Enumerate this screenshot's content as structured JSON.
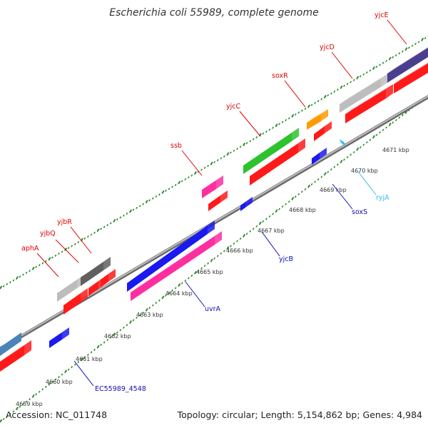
{
  "title": "Escherichia coli 55989, complete genome",
  "footer": {
    "accession": "Accession: NC_011748",
    "summary": "Topology: circular; Length: 5,154,862 bp; Genes: 4,984"
  },
  "colors": {
    "backbone": "#9a9a9a",
    "tick": "#2e8b2e",
    "label_red": "#e00000",
    "label_blue": "#1010b0",
    "label_cyan": "#33bbee"
  },
  "kbp_labels": [
    "4659 kbp",
    "4660 kbp",
    "4661 kbp",
    "4662 kbp",
    "4663 kbp",
    "4664 kbp",
    "4665 kbp",
    "4666 kbp",
    "4667 kbp",
    "4668 kbp",
    "4669 kbp",
    "4670 kbp",
    "4671 kbp"
  ],
  "genes": [
    {
      "label": "aphA",
      "color": "#e00000"
    },
    {
      "label": "yjbQ",
      "color": "#e00000"
    },
    {
      "label": "yjbR",
      "color": "#e00000"
    },
    {
      "label": "ssb",
      "color": "#e00000"
    },
    {
      "label": "yjcC",
      "color": "#e00000"
    },
    {
      "label": "soxR",
      "color": "#e00000"
    },
    {
      "label": "yjcD",
      "color": "#e00000"
    },
    {
      "label": "yjcE",
      "color": "#e00000"
    },
    {
      "label": "EC55989_4548",
      "color": "#1010b0"
    },
    {
      "label": "uvrA",
      "color": "#1010b0"
    },
    {
      "label": "yjcB",
      "color": "#1010b0"
    },
    {
      "label": "soxS",
      "color": "#1010b0"
    },
    {
      "label": "ryjA",
      "color": "#33bbee"
    }
  ]
}
